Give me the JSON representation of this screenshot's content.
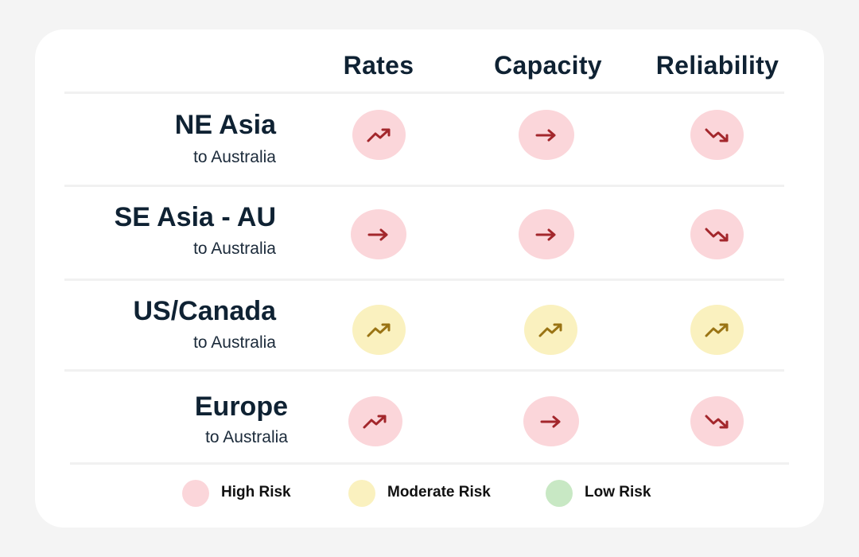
{
  "columns": [
    {
      "label": "Rates"
    },
    {
      "label": "Capacity"
    },
    {
      "label": "Reliability"
    }
  ],
  "routes": [
    {
      "name": "NE Asia",
      "subtitle": "to Australia",
      "cells": [
        {
          "risk": "high",
          "trend": "up",
          "icon": "trending-up-icon"
        },
        {
          "risk": "high",
          "trend": "flat",
          "icon": "arrow-right-icon"
        },
        {
          "risk": "high",
          "trend": "down",
          "icon": "trending-down-icon"
        }
      ]
    },
    {
      "name": "SE Asia - AU",
      "subtitle": "to Australia",
      "cells": [
        {
          "risk": "high",
          "trend": "flat",
          "icon": "arrow-right-icon"
        },
        {
          "risk": "high",
          "trend": "flat",
          "icon": "arrow-right-icon"
        },
        {
          "risk": "high",
          "trend": "down",
          "icon": "trending-down-icon"
        }
      ]
    },
    {
      "name": "US/Canada",
      "subtitle": "to Australia",
      "cells": [
        {
          "risk": "moderate",
          "trend": "up",
          "icon": "trending-up-icon"
        },
        {
          "risk": "moderate",
          "trend": "up",
          "icon": "trending-up-icon"
        },
        {
          "risk": "moderate",
          "trend": "up",
          "icon": "trending-up-icon"
        }
      ]
    },
    {
      "name": "Europe",
      "subtitle": "to Australia",
      "cells": [
        {
          "risk": "high",
          "trend": "up",
          "icon": "trending-up-icon"
        },
        {
          "risk": "high",
          "trend": "flat",
          "icon": "arrow-right-icon"
        },
        {
          "risk": "high",
          "trend": "down",
          "icon": "trending-down-icon"
        }
      ]
    }
  ],
  "legend": [
    {
      "label": "High Risk",
      "risk": "high"
    },
    {
      "label": "Moderate Risk",
      "risk": "moderate"
    },
    {
      "label": "Low Risk",
      "risk": "low"
    }
  ],
  "colors": {
    "high_bg": "#fbd6da",
    "high_icon": "#a3272c",
    "moderate_bg": "#faf1bf",
    "moderate_icon": "#9a7414",
    "low_bg": "#c8e8c4",
    "low_icon": "#2e7d32",
    "text": "#0f2233"
  }
}
